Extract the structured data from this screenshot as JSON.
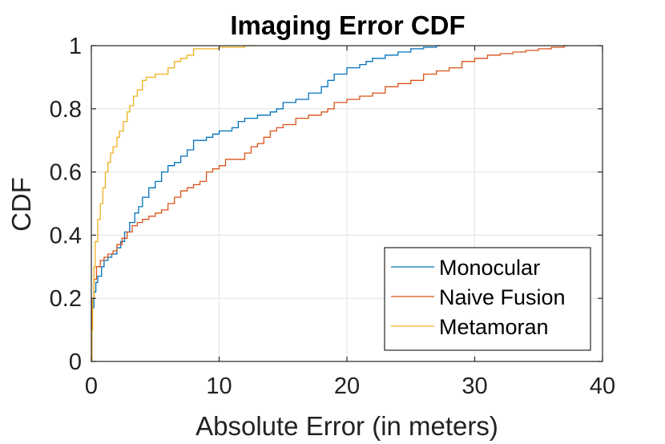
{
  "chart_data": {
    "type": "line",
    "step": true,
    "title": "Imaging Error CDF",
    "xlabel": "Absolute Error (in meters)",
    "ylabel": "CDF",
    "xlim": [
      0,
      40
    ],
    "ylim": [
      0,
      1
    ],
    "xticks": [
      "0",
      "10",
      "20",
      "30",
      "40"
    ],
    "yticks": [
      "0",
      "0.2",
      "0.4",
      "0.6",
      "0.8",
      "1"
    ],
    "grid": true,
    "legend_position": "bottom-right",
    "series": [
      {
        "name": "Monocular",
        "color": "#0072BD",
        "x": [
          0,
          0.05,
          0.2,
          0.35,
          0.5,
          0.8,
          1,
          1.3,
          1.6,
          2,
          2.3,
          2.6,
          3,
          3.4,
          3.7,
          4,
          4.5,
          5,
          5.5,
          6,
          6.5,
          7,
          7.5,
          8,
          8.5,
          9,
          9.5,
          10,
          11,
          11.5,
          12,
          13,
          14,
          14.5,
          15,
          16,
          17,
          18,
          18.5,
          19,
          20,
          21,
          21.5,
          22,
          23,
          24,
          25,
          26,
          27,
          27.3
        ],
        "y": [
          0,
          0.17,
          0.22,
          0.25,
          0.27,
          0.3,
          0.32,
          0.33,
          0.34,
          0.36,
          0.38,
          0.41,
          0.44,
          0.47,
          0.49,
          0.52,
          0.55,
          0.57,
          0.6,
          0.62,
          0.63,
          0.65,
          0.67,
          0.7,
          0.7,
          0.71,
          0.72,
          0.73,
          0.74,
          0.76,
          0.77,
          0.78,
          0.79,
          0.8,
          0.82,
          0.83,
          0.85,
          0.87,
          0.89,
          0.91,
          0.93,
          0.94,
          0.95,
          0.96,
          0.97,
          0.98,
          0.99,
          0.995,
          1,
          1
        ]
      },
      {
        "name": "Naive Fusion",
        "color": "#D95319",
        "x": [
          0,
          0.05,
          0.2,
          0.4,
          0.7,
          1,
          1.3,
          1.7,
          2,
          2.4,
          2.8,
          3.2,
          3.6,
          4,
          4.5,
          5,
          5.5,
          6,
          6.5,
          7,
          7.5,
          8,
          8.5,
          9,
          9.5,
          10,
          10.5,
          11,
          12,
          12.5,
          13,
          13.5,
          14,
          14.5,
          15,
          16,
          17,
          18,
          18.5,
          19,
          20,
          21,
          22,
          23,
          24,
          25,
          26,
          27,
          28,
          29,
          30,
          31,
          32,
          33,
          34,
          35,
          36,
          37,
          37.3
        ],
        "y": [
          0,
          0.2,
          0.26,
          0.3,
          0.32,
          0.33,
          0.34,
          0.35,
          0.37,
          0.39,
          0.41,
          0.43,
          0.44,
          0.45,
          0.46,
          0.47,
          0.48,
          0.5,
          0.52,
          0.54,
          0.55,
          0.56,
          0.57,
          0.6,
          0.61,
          0.62,
          0.64,
          0.64,
          0.66,
          0.68,
          0.69,
          0.71,
          0.73,
          0.74,
          0.75,
          0.77,
          0.78,
          0.79,
          0.8,
          0.82,
          0.83,
          0.84,
          0.85,
          0.87,
          0.88,
          0.89,
          0.91,
          0.92,
          0.93,
          0.95,
          0.96,
          0.97,
          0.975,
          0.98,
          0.985,
          0.99,
          0.995,
          1,
          1
        ]
      },
      {
        "name": "Metamoran",
        "color": "#EDB120",
        "x": [
          0,
          0.05,
          0.1,
          0.2,
          0.3,
          0.5,
          0.7,
          0.9,
          1.1,
          1.3,
          1.5,
          1.7,
          2,
          2.2,
          2.5,
          2.8,
          3,
          3.3,
          3.6,
          4,
          4.3,
          4.6,
          5,
          5.5,
          6,
          6.5,
          7,
          7.5,
          8,
          9,
          10,
          11,
          12,
          12.8
        ],
        "y": [
          0,
          0.1,
          0.2,
          0.3,
          0.38,
          0.45,
          0.5,
          0.55,
          0.6,
          0.63,
          0.66,
          0.68,
          0.71,
          0.73,
          0.76,
          0.79,
          0.81,
          0.84,
          0.86,
          0.89,
          0.9,
          0.9,
          0.91,
          0.91,
          0.93,
          0.95,
          0.96,
          0.97,
          0.99,
          0.99,
          0.995,
          0.995,
          1,
          1
        ]
      }
    ]
  }
}
